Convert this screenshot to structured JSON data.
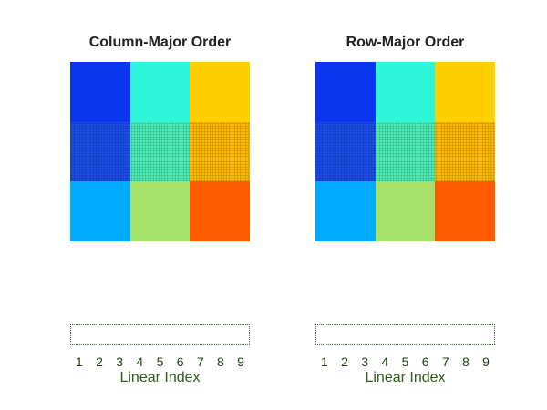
{
  "panels": [
    {
      "title": "Column-Major Order",
      "cells": [
        {
          "color": "#0a36f0",
          "pattern": false
        },
        {
          "color": "#2ff6d8",
          "pattern": false
        },
        {
          "color": "#ffd000",
          "pattern": false
        },
        {
          "color": "#1a4de8",
          "pattern": true
        },
        {
          "color": "#4ceeb8",
          "pattern": true
        },
        {
          "color": "#ffb800",
          "pattern": true
        },
        {
          "color": "#00aaff",
          "pattern": false
        },
        {
          "color": "#a6e06a",
          "pattern": false
        },
        {
          "color": "#ff5a00",
          "pattern": false
        }
      ],
      "tick_labels": [
        "1",
        "2",
        "3",
        "4",
        "5",
        "6",
        "7",
        "8",
        "9"
      ],
      "xlabel": "Linear Index"
    },
    {
      "title": "Row-Major Order",
      "cells": [
        {
          "color": "#0a36f0",
          "pattern": false
        },
        {
          "color": "#2ff6d8",
          "pattern": false
        },
        {
          "color": "#ffd000",
          "pattern": false
        },
        {
          "color": "#1a4de8",
          "pattern": true
        },
        {
          "color": "#4ceeb8",
          "pattern": true
        },
        {
          "color": "#ffb800",
          "pattern": true
        },
        {
          "color": "#00aaff",
          "pattern": false
        },
        {
          "color": "#a6e06a",
          "pattern": false
        },
        {
          "color": "#ff5a00",
          "pattern": false
        }
      ],
      "tick_labels": [
        "1",
        "2",
        "3",
        "4",
        "5",
        "6",
        "7",
        "8",
        "9"
      ],
      "xlabel": "Linear Index"
    }
  ]
}
